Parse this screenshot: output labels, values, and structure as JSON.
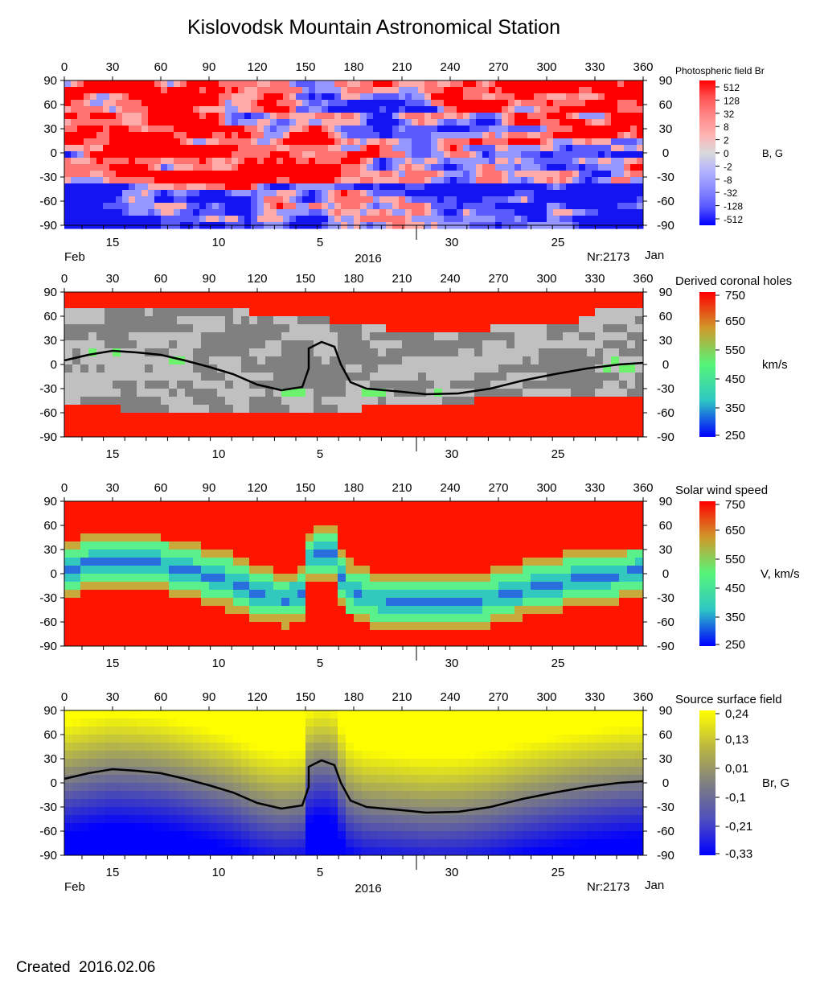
{
  "header": {
    "title": "Kislovodsk Mountain Astronomical Station"
  },
  "footer": {
    "created_label": "Created",
    "created_date": "2016.02.06"
  },
  "chart_data": [
    {
      "type": "heatmap",
      "title": "Photospheric field Br",
      "colorbar_label": "B, G",
      "colorbar_ticks": [
        "512",
        "128",
        "32",
        "8",
        "2",
        "0",
        "-2",
        "-8",
        "-32",
        "-128",
        "-512"
      ],
      "colors": [
        "#ff0000",
        "#ff5757",
        "#ff8a8a",
        "#ffb3b3",
        "#d9d9d9",
        "#b3b3ff",
        "#8a8aff",
        "#5757ff",
        "#0000ff"
      ],
      "xlim": [
        0,
        360
      ],
      "ylim": [
        -90,
        90
      ],
      "x_ticks": [
        "0",
        "30",
        "60",
        "90",
        "120",
        "150",
        "180",
        "210",
        "240",
        "270",
        "300",
        "330",
        "360"
      ],
      "y_ticks": [
        "90",
        "60",
        "30",
        "0",
        "-30",
        "-60",
        "-90"
      ],
      "date_ticks": [
        "15",
        "10",
        "5",
        "30",
        "25"
      ],
      "bottom_left": "Feb",
      "bottom_center": "2016",
      "bottom_right": "Nr:2173",
      "bottom_far_right": "Jan",
      "neutral_line": false
    },
    {
      "type": "heatmap",
      "title": "Derived coronal holes",
      "colorbar_label": "km/s",
      "colorbar_ticks": [
        "750",
        "650",
        "550",
        "450",
        "350",
        "250"
      ],
      "colors": [
        "#ff0000",
        "#cf9a2a",
        "#55f57a",
        "#2ec6c4",
        "#0000ff"
      ],
      "region_colors": {
        "hole": "#ff1a00",
        "light": "#c0c0c0",
        "dark": "#808080",
        "edge": "#6cf26c"
      },
      "xlim": [
        0,
        360
      ],
      "ylim": [
        -90,
        90
      ],
      "x_ticks": [
        "0",
        "30",
        "60",
        "90",
        "120",
        "150",
        "180",
        "210",
        "240",
        "270",
        "300",
        "330",
        "360"
      ],
      "y_ticks": [
        "90",
        "60",
        "30",
        "0",
        "-30",
        "-60",
        "-90"
      ],
      "date_ticks": [
        "15",
        "10",
        "5",
        "30",
        "25"
      ],
      "neutral_line": true,
      "neutral_line_points": [
        [
          0,
          5
        ],
        [
          15,
          12
        ],
        [
          30,
          17
        ],
        [
          45,
          15
        ],
        [
          60,
          12
        ],
        [
          75,
          5
        ],
        [
          90,
          -3
        ],
        [
          105,
          -12
        ],
        [
          120,
          -25
        ],
        [
          135,
          -32
        ],
        [
          148,
          -28
        ],
        [
          152,
          -5
        ],
        [
          152,
          20
        ],
        [
          160,
          28
        ],
        [
          168,
          22
        ],
        [
          172,
          0
        ],
        [
          178,
          -22
        ],
        [
          188,
          -30
        ],
        [
          205,
          -33
        ],
        [
          225,
          -37
        ],
        [
          245,
          -36
        ],
        [
          265,
          -30
        ],
        [
          285,
          -20
        ],
        [
          305,
          -12
        ],
        [
          325,
          -5
        ],
        [
          345,
          0
        ],
        [
          360,
          2
        ]
      ]
    },
    {
      "type": "heatmap",
      "title": "Solar wind speed",
      "colorbar_label": "V, km/s",
      "colorbar_ticks": [
        "750",
        "650",
        "550",
        "450",
        "350",
        "250"
      ],
      "colors": [
        "#ff0000",
        "#cf9a2a",
        "#55f57a",
        "#2ec6c4",
        "#0000ff"
      ],
      "xlim": [
        0,
        360
      ],
      "ylim": [
        -90,
        90
      ],
      "x_ticks": [
        "0",
        "30",
        "60",
        "90",
        "120",
        "150",
        "180",
        "210",
        "240",
        "270",
        "300",
        "330",
        "360"
      ],
      "y_ticks": [
        "90",
        "60",
        "30",
        "0",
        "-30",
        "-60",
        "-90"
      ],
      "date_ticks": [
        "15",
        "10",
        "5",
        "30",
        "25"
      ],
      "neutral_line": false
    },
    {
      "type": "heatmap",
      "title": "Source surface field",
      "colorbar_label": "Br, G",
      "colorbar_ticks": [
        "0,24",
        "0,13",
        "0,01",
        "-0,1",
        "-0,21",
        "-0,33"
      ],
      "colors": [
        "#ffff00",
        "#bcb840",
        "#808080",
        "#4f4fbe",
        "#0000ff"
      ],
      "xlim": [
        0,
        360
      ],
      "ylim": [
        -90,
        90
      ],
      "x_ticks": [
        "0",
        "30",
        "60",
        "90",
        "120",
        "150",
        "180",
        "210",
        "240",
        "270",
        "300",
        "330",
        "360"
      ],
      "y_ticks": [
        "90",
        "60",
        "30",
        "0",
        "-30",
        "-60",
        "-90"
      ],
      "date_ticks": [
        "15",
        "10",
        "5",
        "30",
        "25"
      ],
      "bottom_left": "Feb",
      "bottom_center": "2016",
      "bottom_right": "Nr:2173",
      "bottom_far_right": "Jan",
      "neutral_line": true,
      "neutral_line_points": [
        [
          0,
          5
        ],
        [
          15,
          12
        ],
        [
          30,
          17
        ],
        [
          45,
          15
        ],
        [
          60,
          12
        ],
        [
          75,
          5
        ],
        [
          90,
          -3
        ],
        [
          105,
          -12
        ],
        [
          120,
          -25
        ],
        [
          135,
          -32
        ],
        [
          148,
          -28
        ],
        [
          152,
          -5
        ],
        [
          152,
          20
        ],
        [
          160,
          28
        ],
        [
          168,
          22
        ],
        [
          172,
          0
        ],
        [
          178,
          -22
        ],
        [
          188,
          -30
        ],
        [
          205,
          -33
        ],
        [
          225,
          -37
        ],
        [
          245,
          -36
        ],
        [
          265,
          -30
        ],
        [
          285,
          -20
        ],
        [
          305,
          -12
        ],
        [
          325,
          -5
        ],
        [
          345,
          0
        ],
        [
          360,
          2
        ]
      ]
    }
  ]
}
